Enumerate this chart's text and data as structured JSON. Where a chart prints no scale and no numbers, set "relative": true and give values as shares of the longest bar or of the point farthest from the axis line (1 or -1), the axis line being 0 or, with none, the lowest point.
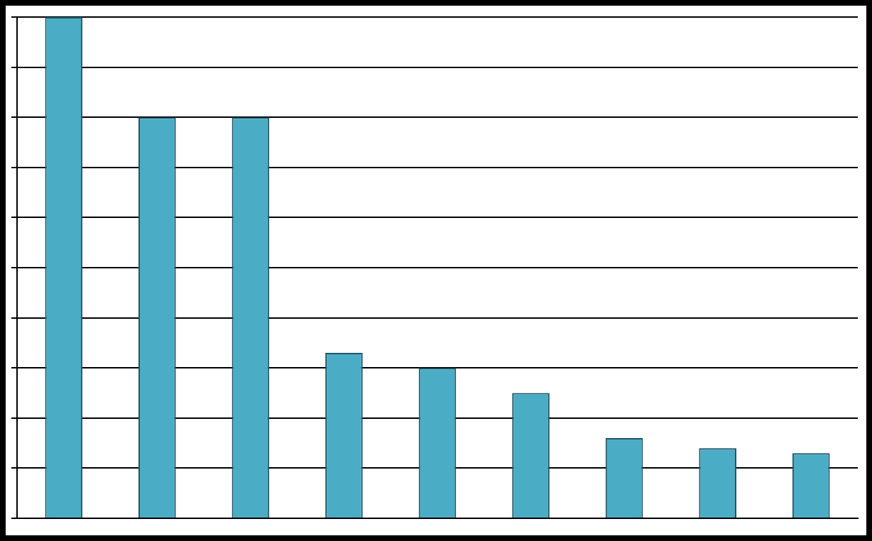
{
  "chart_data": {
    "type": "bar",
    "relative": true,
    "grid": "y",
    "legend": false,
    "categories": [
      null,
      null,
      null,
      null,
      null,
      null,
      null,
      null,
      null
    ],
    "values": [
      1,
      0.8,
      0.8,
      0.33,
      0.3,
      0.25,
      0.16,
      0.14,
      0.13
    ],
    "color": "#4bacc6"
  }
}
